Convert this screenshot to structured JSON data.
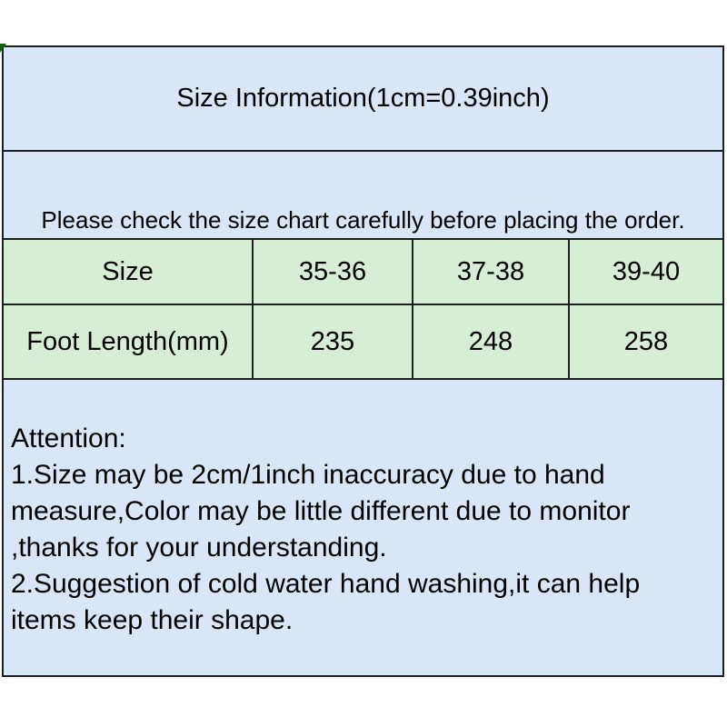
{
  "title": "Size Information(1cm=0.39inch)",
  "note": "Please check the size chart carefully before placing the order.",
  "size_table": {
    "rows": [
      {
        "header": "Size",
        "values": [
          "35-36",
          "37-38",
          "39-40"
        ]
      },
      {
        "header": "Foot Length(mm)",
        "values": [
          "235",
          "248",
          "258"
        ]
      }
    ]
  },
  "attention": {
    "heading": "Attention:",
    "lines": [
      "1.Size may be 2cm/1inch inaccuracy due to hand",
      "measure,Color may be little different due to monitor",
      ",thanks for your understanding.",
      "2.Suggestion of cold water hand washing,it can help",
      "items keep their shape."
    ]
  },
  "colors": {
    "section_blue": "#d9e6f8",
    "table_green": "#d6eed5",
    "border": "#1f1f1f",
    "corner_mark_green": "#0b660b",
    "text": "#000000",
    "background": "#ffffff"
  }
}
